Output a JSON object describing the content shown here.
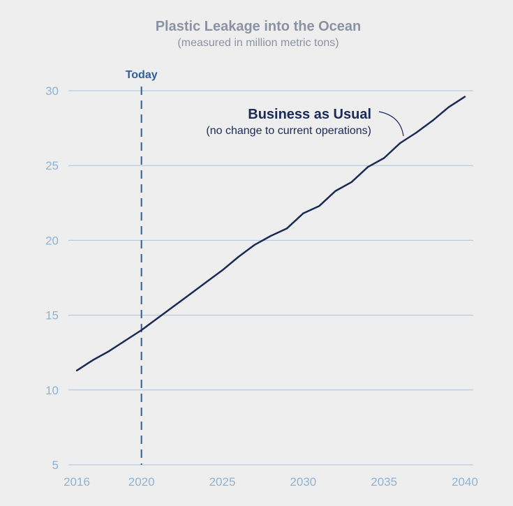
{
  "chart_data": {
    "type": "line",
    "title": "Plastic Leakage into the Ocean",
    "subtitle": "(measured in million metric tons)",
    "xlim": [
      2016,
      2040
    ],
    "ylim": [
      5,
      30
    ],
    "x_ticks": [
      "2016",
      "2020",
      "2025",
      "2030",
      "2035",
      "2040"
    ],
    "y_ticks": [
      "30",
      "25",
      "20",
      "15",
      "10",
      "5"
    ],
    "grid": true,
    "series": [
      {
        "x": [
          2016,
          2017,
          2018,
          2019,
          2020,
          2021,
          2022,
          2023,
          2024,
          2025,
          2026,
          2027,
          2028,
          2029,
          2030,
          2031,
          2032,
          2033,
          2034,
          2035,
          2036,
          2037,
          2038,
          2039,
          2040
        ],
        "y": [
          11.3,
          12.0,
          12.6,
          13.3,
          14.0,
          14.8,
          15.6,
          16.4,
          17.2,
          18.0,
          18.9,
          19.7,
          20.3,
          20.8,
          21.8,
          22.3,
          23.3,
          23.9,
          24.9,
          25.5,
          26.5,
          27.2,
          28.0,
          28.9,
          29.6
        ]
      }
    ],
    "reference_line": {
      "x": 2020,
      "label": "Today"
    },
    "annotation": {
      "title": "Business as Usual",
      "subtitle": "(no change to current operations)"
    }
  }
}
